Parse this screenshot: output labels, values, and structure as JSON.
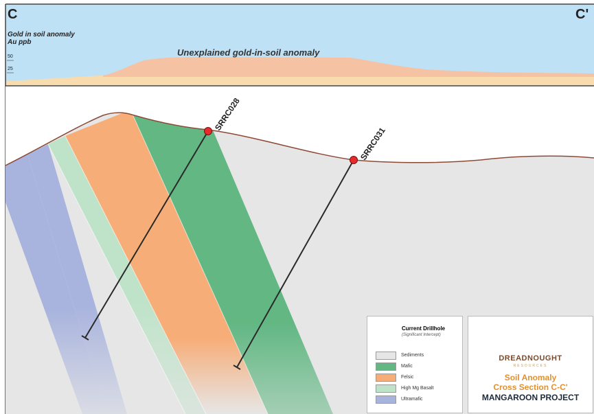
{
  "section": {
    "start_label": "C",
    "end_label": "C'"
  },
  "soil_panel": {
    "title_line1": "Gold in soil anomaly",
    "title_line2": "Au ppb",
    "tick_50": "50",
    "tick_25": "25",
    "anomaly_label": "Unexplained gold-in-soil anomaly"
  },
  "drillholes": [
    {
      "id": "SRRC028"
    },
    {
      "id": "SRRC031"
    }
  ],
  "legend": {
    "current_drillhole": "Current Drillhole",
    "significant_intercept": "(Significant Intercept)",
    "items": [
      {
        "label": "Sediments",
        "color": "#e6e6e6"
      },
      {
        "label": "Mafic",
        "color": "#62b783"
      },
      {
        "label": "Felsic",
        "color": "#f7ad78"
      },
      {
        "label": "High Mg Basalt",
        "color": "#bfe3c9"
      },
      {
        "label": "Ultramafic",
        "color": "#a9b4de"
      }
    ]
  },
  "title_block": {
    "brand": "DREADNOUGHT",
    "brand_sub": "RESOURCES",
    "subtitle1": "Soil Anomaly",
    "subtitle2": "Cross Section C-C'",
    "project": "MANGAROON PROJECT"
  },
  "colors": {
    "sky": "#bfe1f5",
    "soil_anomaly": "#f6c2a4",
    "soil_base": "#f8dcae",
    "sediment": "#e6e6e6",
    "surface_line": "#8b4a36",
    "collar": "#e52b2b"
  }
}
